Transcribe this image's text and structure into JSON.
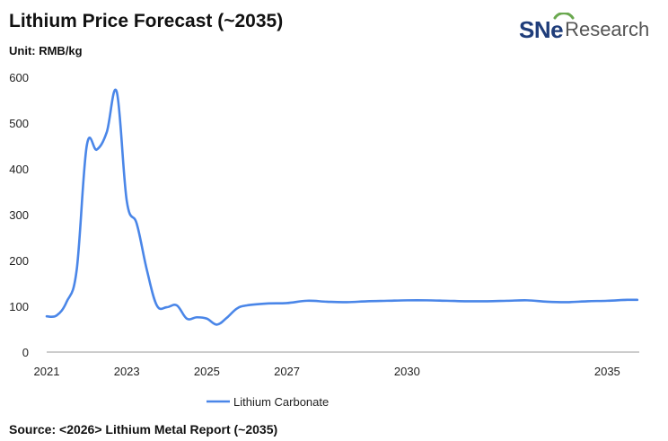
{
  "header": {
    "title": "Lithium Price Forecast (~2035)",
    "unit": "Unit: RMB/kg"
  },
  "logo": {
    "mark": "SNe",
    "text": "Research"
  },
  "footer": {
    "source": "Source: <2026> Lithium Metal Report (~2035)"
  },
  "colors": {
    "line": "#4a86e8",
    "axis": "#999999",
    "brand": "#1f3d7a"
  },
  "chart_data": {
    "type": "line",
    "title": "Lithium Price Forecast (~2035)",
    "ylabel": "RMB/kg",
    "xlabel": "",
    "xlim": [
      2021,
      2035.8
    ],
    "ylim": [
      0,
      600
    ],
    "yticks": [
      0,
      100,
      200,
      300,
      400,
      500,
      600
    ],
    "xticks": [
      {
        "value": 2021,
        "label": "2021"
      },
      {
        "value": 2023,
        "label": "2023"
      },
      {
        "value": 2025,
        "label": "2025"
      },
      {
        "value": 2027,
        "label": "2027"
      },
      {
        "value": 2030,
        "label": "2030"
      },
      {
        "value": 2035,
        "label": "2035"
      }
    ],
    "legend": {
      "position": "bottom-left"
    },
    "series": [
      {
        "name": "Lithium Carbonate",
        "points": [
          [
            2021.0,
            78
          ],
          [
            2021.25,
            80
          ],
          [
            2021.5,
            110
          ],
          [
            2021.75,
            180
          ],
          [
            2022.0,
            450
          ],
          [
            2022.25,
            442
          ],
          [
            2022.5,
            480
          ],
          [
            2022.75,
            568
          ],
          [
            2023.0,
            330
          ],
          [
            2023.25,
            280
          ],
          [
            2023.5,
            180
          ],
          [
            2023.75,
            102
          ],
          [
            2024.0,
            98
          ],
          [
            2024.25,
            102
          ],
          [
            2024.5,
            73
          ],
          [
            2024.75,
            76
          ],
          [
            2025.0,
            73
          ],
          [
            2025.25,
            60
          ],
          [
            2025.5,
            75
          ],
          [
            2025.75,
            95
          ],
          [
            2026.0,
            102
          ],
          [
            2026.5,
            106
          ],
          [
            2027.0,
            107
          ],
          [
            2027.5,
            112
          ],
          [
            2028.0,
            110
          ],
          [
            2028.5,
            109
          ],
          [
            2029.0,
            111
          ],
          [
            2029.5,
            112
          ],
          [
            2030.0,
            113
          ],
          [
            2030.5,
            113
          ],
          [
            2031.0,
            112
          ],
          [
            2031.5,
            111
          ],
          [
            2032.0,
            111
          ],
          [
            2032.5,
            112
          ],
          [
            2033.0,
            113
          ],
          [
            2033.5,
            110
          ],
          [
            2034.0,
            109
          ],
          [
            2034.5,
            111
          ],
          [
            2035.0,
            112
          ],
          [
            2035.5,
            114
          ],
          [
            2035.75,
            114
          ]
        ]
      }
    ]
  }
}
